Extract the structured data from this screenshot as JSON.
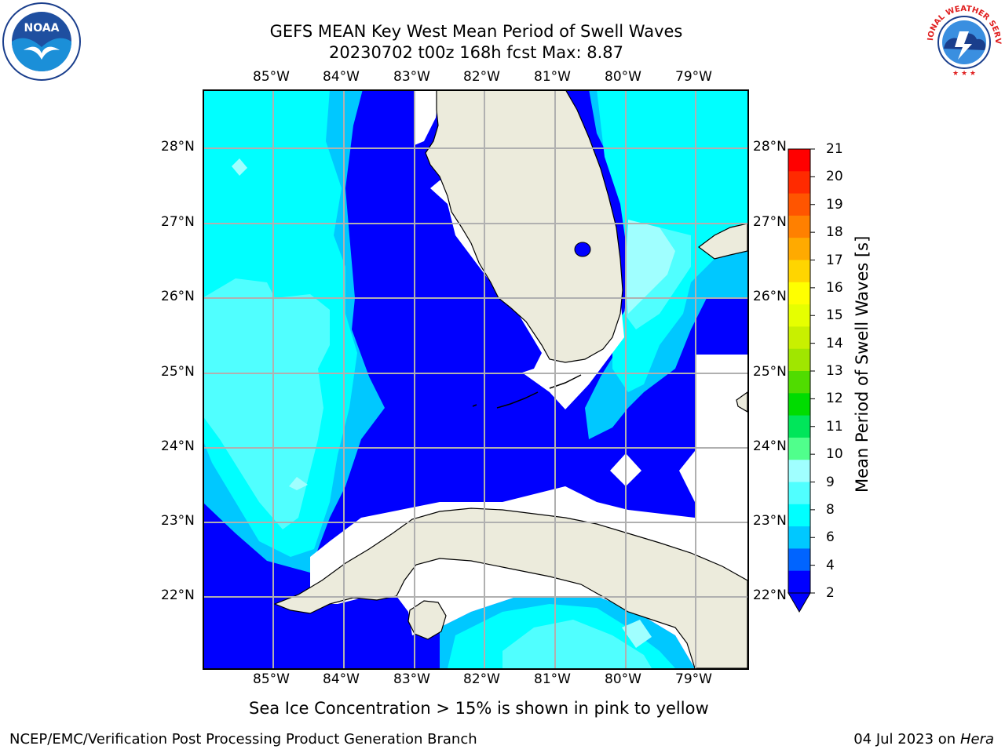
{
  "header": {
    "title_line1": "GEFS MEAN Key West Mean Period of Swell Waves",
    "title_line2": "20230702 t00z 168h fcst   Max: 8.87",
    "left_logo": {
      "text": "NOAA",
      "icon": "noaa-logo"
    },
    "right_logo": {
      "text": "NATIONAL WEATHER SERVICE",
      "icon": "nws-logo"
    }
  },
  "map": {
    "lon_labels": [
      "85°W",
      "84°W",
      "83°W",
      "82°W",
      "81°W",
      "80°W",
      "79°W"
    ],
    "lat_labels": [
      "28°N",
      "27°N",
      "26°N",
      "25°N",
      "24°N",
      "23°N",
      "22°N"
    ],
    "colors": {
      "land": "#ecebdc",
      "grid": "#b0b0b0",
      "no_data": "#ffffff"
    }
  },
  "colorbar": {
    "title": "Mean Period of Swell Waves [s]",
    "ticks": [
      "21",
      "20",
      "19",
      "18",
      "17",
      "16",
      "15",
      "14",
      "13",
      "12",
      "11",
      "10",
      "9",
      "8",
      "6",
      "4",
      "2"
    ],
    "colors": [
      "#ff0000",
      "#ff2a00",
      "#ff5500",
      "#ff8000",
      "#ffaa00",
      "#ffd500",
      "#ffff00",
      "#e6ff00",
      "#c8f000",
      "#a0e600",
      "#50dc00",
      "#00dc00",
      "#00e65a",
      "#50ff8c",
      "#a0ffff",
      "#50ffff",
      "#00ffff",
      "#00c8ff",
      "#0064ff",
      "#0000ff"
    ]
  },
  "note": "Sea Ice Concentration > 15% is shown in pink to yellow",
  "footer": {
    "left": "NCEP/EMC/Verification Post Processing Product Generation Branch",
    "right_date": "04 Jul 2023 on ",
    "right_host": "Hera"
  }
}
